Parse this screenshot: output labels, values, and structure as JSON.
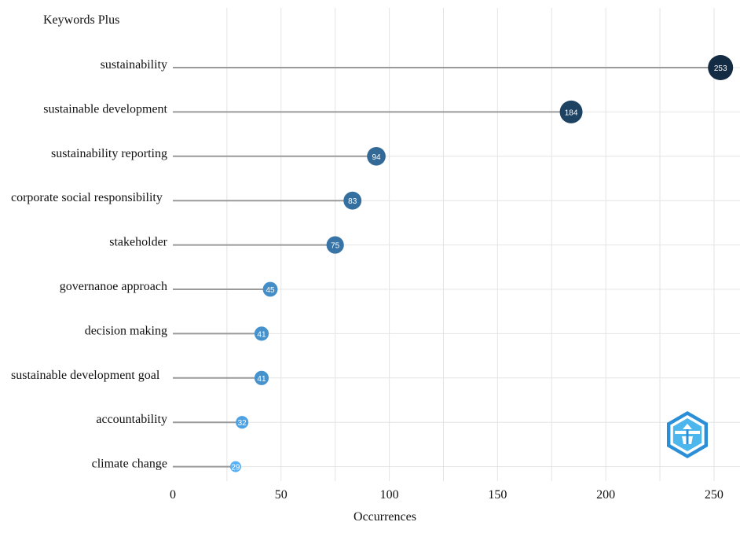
{
  "chart_data": {
    "type": "lollipop",
    "title": "Keywords Plus",
    "xlabel": "Occurrences",
    "ylabel": "",
    "xlim": [
      0,
      262
    ],
    "xticks": [
      0,
      50,
      100,
      150,
      200,
      250
    ],
    "grid": true,
    "legend": "none",
    "categories": [
      "sustainability",
      "sustainable development",
      "sustainability reporting",
      "corporate social responsibility",
      "stakeholder",
      "governanoe approach",
      "decision making",
      "sustainable development goal",
      "accountability",
      "climate change"
    ],
    "values": [
      253,
      184,
      94,
      83,
      75,
      45,
      41,
      41,
      32,
      29
    ],
    "colors": {
      "stem": "#9a9a9a",
      "grid": "#e4e4e4",
      "low": "#56b1f7",
      "high": "#132b43"
    }
  },
  "logo": {
    "name": "hexagon-emblem-icon"
  }
}
